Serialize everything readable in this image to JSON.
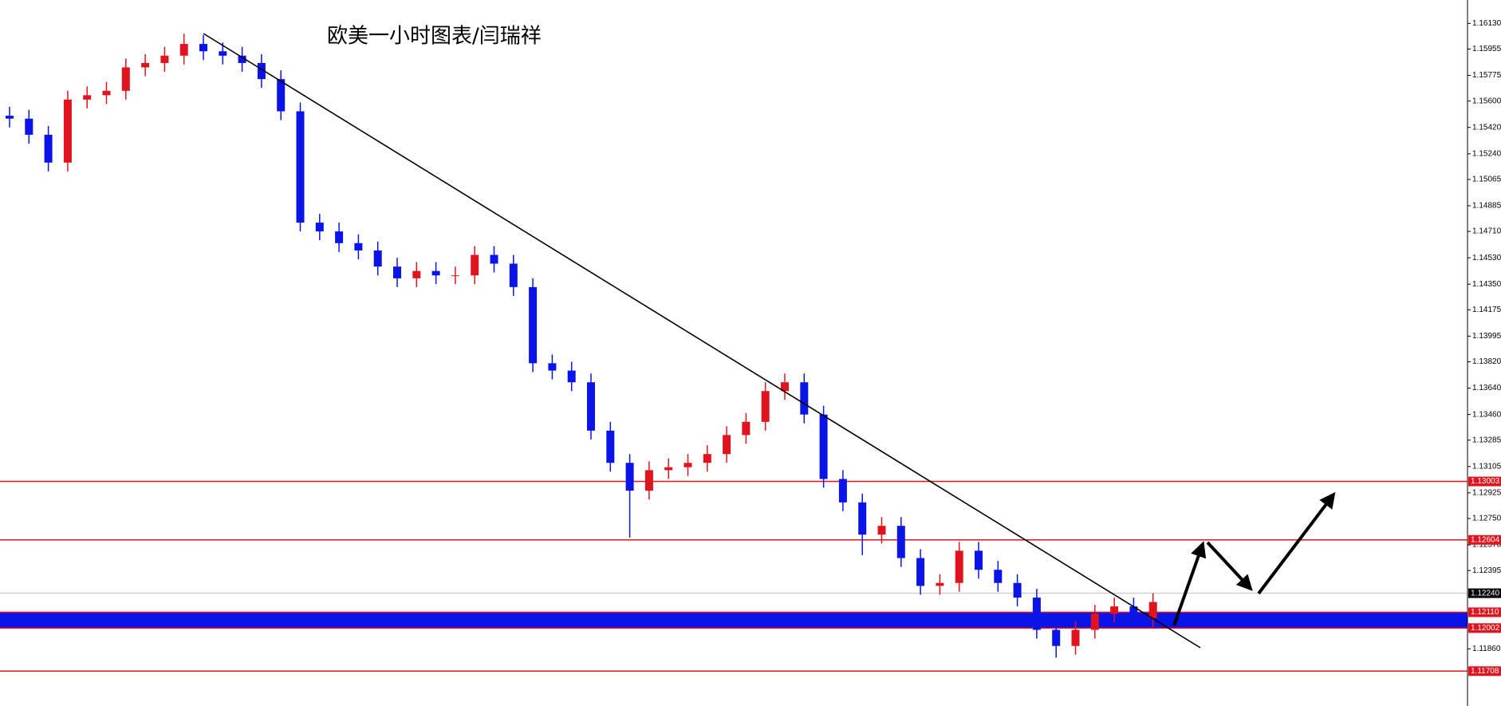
{
  "chart_data": {
    "type": "candlestick",
    "title": "欧美一小时图表/闫瑞祥",
    "ylim": [
      1.1629,
      1.1147
    ],
    "yticks": [
      {
        "value": 1.1613,
        "label": "1.16130"
      },
      {
        "value": 1.15955,
        "label": "1.15955"
      },
      {
        "value": 1.15775,
        "label": "1.15775"
      },
      {
        "value": 1.156,
        "label": "1.15600"
      },
      {
        "value": 1.1542,
        "label": "1.15420"
      },
      {
        "value": 1.1524,
        "label": "1.15240"
      },
      {
        "value": 1.15065,
        "label": "1.15065"
      },
      {
        "value": 1.14885,
        "label": "1.14885"
      },
      {
        "value": 1.1471,
        "label": "1.14710"
      },
      {
        "value": 1.1453,
        "label": "1.14530"
      },
      {
        "value": 1.1435,
        "label": "1.14350"
      },
      {
        "value": 1.14175,
        "label": "1.14175"
      },
      {
        "value": 1.13995,
        "label": "1.13995"
      },
      {
        "value": 1.1382,
        "label": "1.13820"
      },
      {
        "value": 1.1364,
        "label": "1.13640"
      },
      {
        "value": 1.1346,
        "label": "1.13460"
      },
      {
        "value": 1.13285,
        "label": "1.13285"
      },
      {
        "value": 1.13105,
        "label": "1.13105"
      },
      {
        "value": 1.12925,
        "label": "1.12925"
      },
      {
        "value": 1.1275,
        "label": "1.12750"
      },
      {
        "value": 1.1257,
        "label": "1.12570"
      },
      {
        "value": 1.12395,
        "label": "1.12395"
      },
      {
        "value": 1.1186,
        "label": "1.11860"
      }
    ],
    "up_color": "#e0141e",
    "down_color": "#0a14e6",
    "open": [
      1.155,
      1.1548,
      1.1537,
      1.1518,
      1.1561,
      1.1564,
      1.1567,
      1.1583,
      1.1586,
      1.1591,
      1.1599,
      1.1594,
      1.1591,
      1.1586,
      1.1575,
      1.1553,
      1.1477,
      1.1471,
      1.1463,
      1.1458,
      1.1447,
      1.1439,
      1.1444,
      1.1441,
      1.1441,
      1.1455,
      1.1449,
      1.1433,
      1.1381,
      1.1376,
      1.1368,
      1.1335,
      1.1313,
      1.1294,
      1.1308,
      1.131,
      1.1313,
      1.1319,
      1.1332,
      1.1341,
      1.1362,
      1.1368,
      1.1346,
      1.1302,
      1.1286,
      1.1264,
      1.127,
      1.1248,
      1.1229,
      1.1231,
      1.1253,
      1.124,
      1.1231,
      1.1221,
      1.1199,
      1.1188,
      1.1199,
      1.121,
      1.1215,
      1.1207
    ],
    "high": [
      1.1556,
      1.1554,
      1.1543,
      1.1567,
      1.157,
      1.1573,
      1.1589,
      1.1592,
      1.1597,
      1.1606,
      1.1605,
      1.16,
      1.1597,
      1.1592,
      1.1581,
      1.1559,
      1.1483,
      1.1477,
      1.1469,
      1.1464,
      1.1453,
      1.145,
      1.145,
      1.1447,
      1.1461,
      1.1461,
      1.1455,
      1.1439,
      1.1387,
      1.1382,
      1.1374,
      1.1341,
      1.1319,
      1.1314,
      1.1316,
      1.1319,
      1.1325,
      1.1338,
      1.1347,
      1.1368,
      1.1374,
      1.1374,
      1.1352,
      1.1308,
      1.1292,
      1.1276,
      1.1276,
      1.1254,
      1.1237,
      1.1259,
      1.1259,
      1.1246,
      1.1237,
      1.1227,
      1.1205,
      1.1205,
      1.1216,
      1.1221,
      1.1221,
      1.1224
    ],
    "low": [
      1.1542,
      1.1531,
      1.1512,
      1.1512,
      1.1555,
      1.1558,
      1.1561,
      1.1577,
      1.158,
      1.1585,
      1.1588,
      1.1585,
      1.158,
      1.1569,
      1.1547,
      1.1471,
      1.1465,
      1.1457,
      1.1452,
      1.1441,
      1.1433,
      1.1433,
      1.1435,
      1.1435,
      1.1435,
      1.1443,
      1.1427,
      1.1375,
      1.137,
      1.1362,
      1.1329,
      1.1307,
      1.1262,
      1.1288,
      1.1302,
      1.1304,
      1.1307,
      1.1313,
      1.1326,
      1.1335,
      1.1356,
      1.134,
      1.1296,
      1.128,
      1.125,
      1.1258,
      1.1242,
      1.1223,
      1.1223,
      1.1225,
      1.1234,
      1.1225,
      1.1215,
      1.1193,
      1.118,
      1.1182,
      1.1193,
      1.1204,
      1.1201,
      1.1201
    ],
    "close": [
      1.1548,
      1.1537,
      1.1518,
      1.1561,
      1.1564,
      1.1567,
      1.1583,
      1.1586,
      1.1591,
      1.1599,
      1.1594,
      1.1591,
      1.1586,
      1.1575,
      1.1553,
      1.1477,
      1.1471,
      1.1463,
      1.1458,
      1.1447,
      1.1439,
      1.1444,
      1.1441,
      1.1441,
      1.1455,
      1.1449,
      1.1433,
      1.1381,
      1.1376,
      1.1368,
      1.1335,
      1.1313,
      1.1294,
      1.1308,
      1.131,
      1.1313,
      1.1319,
      1.1332,
      1.1341,
      1.1362,
      1.1368,
      1.1346,
      1.1302,
      1.1286,
      1.1264,
      1.127,
      1.1248,
      1.1229,
      1.1231,
      1.1253,
      1.124,
      1.1231,
      1.1221,
      1.1199,
      1.1188,
      1.1199,
      1.121,
      1.1215,
      1.1207,
      1.1218
    ],
    "band": {
      "low": 1.12002,
      "high": 1.1211,
      "color": "#0a14e6"
    },
    "levels": [
      {
        "value": 1.13003,
        "label": "1.13003",
        "color": "#e0141e"
      },
      {
        "value": 1.12604,
        "label": "1.12604",
        "color": "#e0141e"
      },
      {
        "value": 1.1224,
        "label": "1.12240",
        "color": "#000000"
      },
      {
        "value": 1.1211,
        "label": "1.12110",
        "color": "#e0141e"
      },
      {
        "value": 1.12002,
        "label": "1.12002",
        "color": "#e0141e"
      },
      {
        "value": 1.11708,
        "label": "1.11708",
        "color": "#e0141e"
      }
    ]
  }
}
